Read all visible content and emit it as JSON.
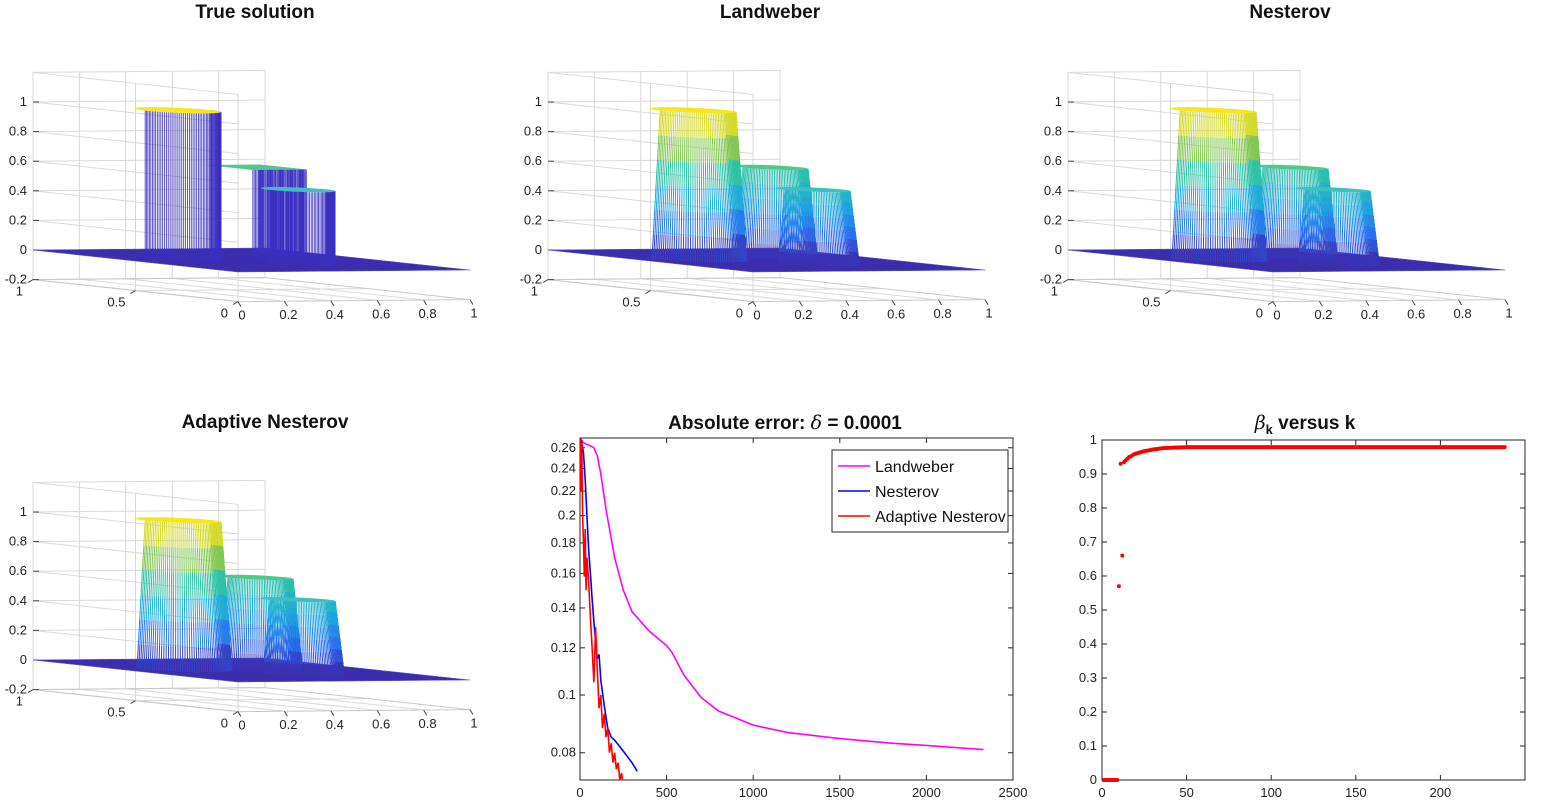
{
  "chart_data": [
    {
      "type": "surface",
      "title": "True solution",
      "z_ticks": [
        "-0.2",
        "0",
        "0.2",
        "0.4",
        "0.6",
        "0.8",
        "1"
      ],
      "x_ticks": [
        "0",
        "0.2",
        "0.4",
        "0.6",
        "0.8",
        "1"
      ],
      "y_ticks": [
        "0",
        "0.5",
        "1"
      ],
      "zlim": [
        -0.2,
        1.2
      ],
      "shapes": [
        {
          "kind": "cylinder",
          "cx": 0.27,
          "cy": 0.6,
          "r": 0.14,
          "height": 1.0,
          "top_color": "#f7e51f"
        },
        {
          "kind": "box",
          "x0": 0.55,
          "x1": 0.78,
          "y0": 0.55,
          "y1": 0.78,
          "height": 0.6,
          "top_color": "#4fc88a"
        },
        {
          "kind": "cylinder",
          "cx": 0.55,
          "cy": 0.33,
          "r": 0.12,
          "height": 0.5,
          "top_color": "#3cc1be"
        }
      ]
    },
    {
      "type": "surface",
      "title": "Landweber",
      "z_ticks": [
        "-0.2",
        "0",
        "0.2",
        "0.4",
        "0.6",
        "0.8",
        "1"
      ],
      "x_ticks": [
        "0",
        "0.2",
        "0.4",
        "0.6",
        "0.8",
        "1"
      ],
      "y_ticks": [
        "0",
        "0.5",
        "1"
      ],
      "zlim": [
        -0.2,
        1.2
      ],
      "shapes": [
        {
          "kind": "mound",
          "cx": 0.27,
          "cy": 0.6,
          "r": 0.14,
          "height": 1.0,
          "top_color": "#f7e51f"
        },
        {
          "kind": "mound",
          "cx": 0.66,
          "cy": 0.66,
          "r": 0.12,
          "height": 0.6,
          "top_color": "#4fc88a"
        },
        {
          "kind": "mound",
          "cx": 0.55,
          "cy": 0.33,
          "r": 0.12,
          "height": 0.5,
          "top_color": "#3cc1be"
        }
      ]
    },
    {
      "type": "surface",
      "title": "Nesterov",
      "z_ticks": [
        "-0.2",
        "0",
        "0.2",
        "0.4",
        "0.6",
        "0.8",
        "1"
      ],
      "x_ticks": [
        "0",
        "0.2",
        "0.4",
        "0.6",
        "0.8",
        "1"
      ],
      "y_ticks": [
        "0",
        "0.5",
        "1"
      ],
      "zlim": [
        -0.2,
        1.2
      ],
      "shapes": [
        {
          "kind": "mound",
          "cx": 0.27,
          "cy": 0.6,
          "r": 0.14,
          "height": 1.0,
          "top_color": "#f7e51f"
        },
        {
          "kind": "mound",
          "cx": 0.66,
          "cy": 0.66,
          "r": 0.12,
          "height": 0.6,
          "top_color": "#4fc88a"
        },
        {
          "kind": "mound",
          "cx": 0.55,
          "cy": 0.33,
          "r": 0.12,
          "height": 0.5,
          "top_color": "#3cc1be"
        }
      ]
    },
    {
      "type": "surface",
      "title": "Adaptive Nesterov",
      "z_ticks": [
        "-0.2",
        "0",
        "0.2",
        "0.4",
        "0.6",
        "0.8",
        "1"
      ],
      "x_ticks": [
        "0",
        "0.2",
        "0.4",
        "0.6",
        "0.8",
        "1"
      ],
      "y_ticks": [
        "0",
        "0.5",
        "1"
      ],
      "zlim": [
        -0.2,
        1.2
      ],
      "shapes": [
        {
          "kind": "mound",
          "cx": 0.27,
          "cy": 0.6,
          "r": 0.14,
          "height": 1.0,
          "top_color": "#f7e51f"
        },
        {
          "kind": "mound",
          "cx": 0.66,
          "cy": 0.66,
          "r": 0.12,
          "height": 0.6,
          "top_color": "#4fc88a"
        },
        {
          "kind": "mound",
          "cx": 0.55,
          "cy": 0.33,
          "r": 0.12,
          "height": 0.5,
          "top_color": "#3cc1be"
        }
      ]
    },
    {
      "type": "line",
      "title_prefix": "Absolute error: ",
      "title_symbol": "δ",
      "title_suffix": " = 0.0001",
      "xlim": [
        0,
        2500
      ],
      "ylim": [
        0.072,
        0.27
      ],
      "y_scale": "log",
      "x_ticks": [
        0,
        500,
        1000,
        1500,
        2000,
        2500
      ],
      "y_ticks": [
        0.08,
        0.1,
        0.12,
        0.14,
        0.16,
        0.18,
        0.2,
        0.22,
        0.24,
        0.26
      ],
      "legend_position": "top-right",
      "series": [
        {
          "name": "Landweber",
          "color": "#ff00ff",
          "x": [
            0,
            20,
            60,
            80,
            100,
            120,
            150,
            200,
            250,
            300,
            400,
            500,
            530,
            600,
            700,
            800,
            1000,
            1200,
            1500,
            1800,
            2000,
            2330
          ],
          "y": [
            0.27,
            0.265,
            0.262,
            0.26,
            0.252,
            0.235,
            0.205,
            0.17,
            0.15,
            0.138,
            0.128,
            0.121,
            0.118,
            0.108,
            0.099,
            0.094,
            0.089,
            0.0865,
            0.0845,
            0.083,
            0.0823,
            0.081
          ]
        },
        {
          "name": "Nesterov",
          "color": "#0000ff",
          "x": [
            0,
            10,
            20,
            30,
            40,
            50,
            60,
            70,
            80,
            90,
            100,
            110,
            120,
            140,
            160,
            180,
            200,
            250,
            300,
            330
          ],
          "y": [
            0.27,
            0.265,
            0.255,
            0.23,
            0.2,
            0.175,
            0.16,
            0.145,
            0.133,
            0.123,
            0.115,
            0.117,
            0.106,
            0.096,
            0.088,
            0.085,
            0.084,
            0.0805,
            0.077,
            0.0745
          ]
        },
        {
          "name": "Adaptive Nesterov",
          "color": "#ff0000",
          "x": [
            0,
            5,
            10,
            15,
            20,
            25,
            30,
            35,
            40,
            50,
            60,
            70,
            80,
            90,
            100,
            110,
            120,
            130,
            140,
            150,
            160,
            170,
            180,
            190,
            200,
            210,
            220,
            230,
            240,
            250
          ],
          "y": [
            0.27,
            0.22,
            0.265,
            0.2,
            0.18,
            0.158,
            0.19,
            0.15,
            0.17,
            0.155,
            0.135,
            0.12,
            0.105,
            0.13,
            0.11,
            0.095,
            0.1,
            0.088,
            0.093,
            0.085,
            0.088,
            0.08,
            0.083,
            0.077,
            0.08,
            0.075,
            0.077,
            0.072,
            0.074,
            0.07
          ]
        }
      ]
    },
    {
      "type": "scatter",
      "title_symbol": "β",
      "title_sub": "k",
      "title_suffix": " versus k",
      "xlim": [
        0,
        250
      ],
      "ylim": [
        0,
        1
      ],
      "x_ticks": [
        0,
        50,
        100,
        150,
        200
      ],
      "y_ticks": [
        0,
        0.1,
        0.2,
        0.3,
        0.4,
        0.5,
        0.6,
        0.7,
        0.8,
        0.9,
        1
      ],
      "color": "#ff0000",
      "points_formula_note": "",
      "x": [
        1,
        2,
        3,
        4,
        5,
        6,
        7,
        8,
        9,
        10,
        11,
        12,
        13,
        14,
        15,
        16,
        17,
        18,
        19,
        20,
        22,
        24,
        26,
        28,
        30,
        33,
        36,
        40,
        45,
        50,
        60,
        70,
        80,
        90,
        100,
        110,
        120,
        130,
        140,
        150,
        160,
        170,
        180,
        190,
        200,
        210,
        220,
        230,
        238
      ],
      "y": [
        0,
        0,
        0,
        0,
        0,
        0,
        0,
        0,
        0,
        0.57,
        0.93,
        0.66,
        0.935,
        0.94,
        0.945,
        0.95,
        0.952,
        0.955,
        0.958,
        0.96,
        0.963,
        0.966,
        0.968,
        0.97,
        0.972,
        0.974,
        0.976,
        0.977,
        0.978,
        0.979,
        0.979,
        0.979,
        0.979,
        0.979,
        0.979,
        0.979,
        0.979,
        0.979,
        0.979,
        0.979,
        0.979,
        0.979,
        0.979,
        0.979,
        0.979,
        0.979,
        0.979,
        0.979,
        0.979
      ]
    }
  ]
}
